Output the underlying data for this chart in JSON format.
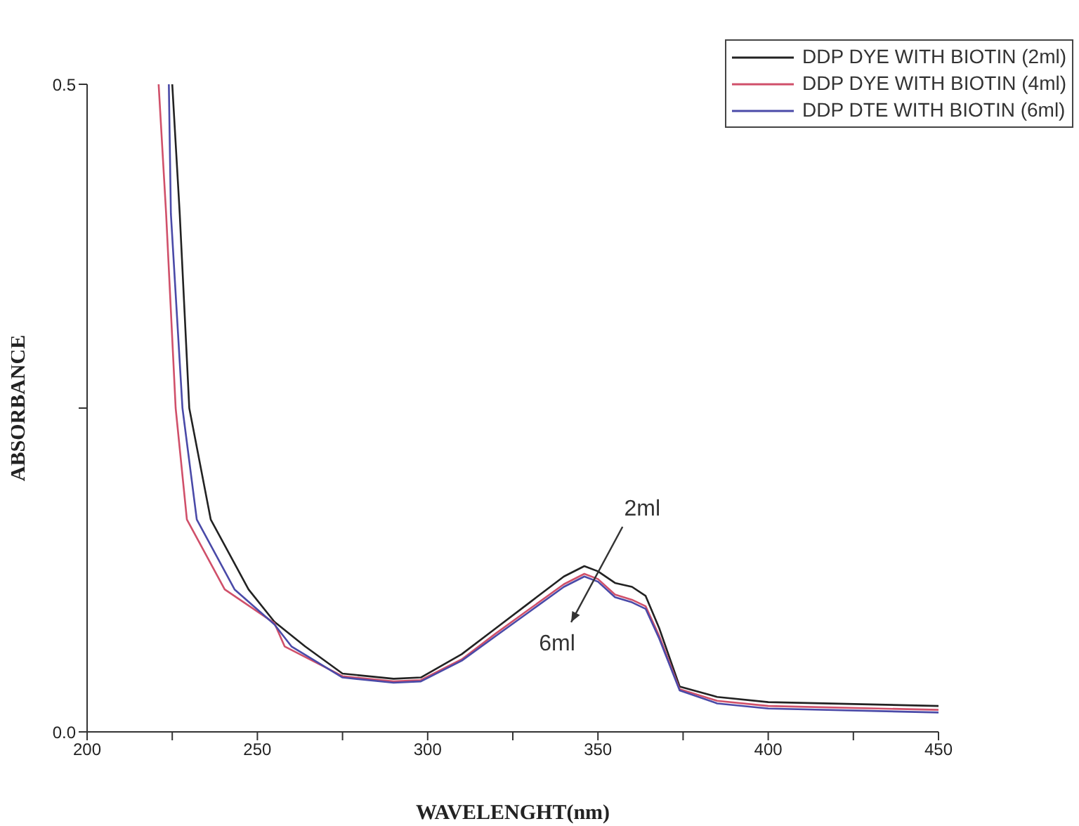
{
  "chart_data": {
    "type": "line",
    "xlabel": "WAVELENGHT(nm)",
    "ylabel": "ABSORBANCE",
    "xlim": [
      200,
      450
    ],
    "xticks": [
      200,
      {
        "value": 225,
        "label": null
      },
      250,
      {
        "value": 275,
        "label": null
      },
      300,
      {
        "value": 325,
        "label": null
      },
      350,
      {
        "value": 375,
        "label": null
      },
      400,
      {
        "value": 425,
        "label": null
      },
      450
    ],
    "ylim": [
      0,
      0.5
    ],
    "yticks": [
      {
        "value": 0,
        "label": "0.0"
      },
      {
        "value": 0.25,
        "label": null
      },
      0.5
    ],
    "grid": false,
    "legend": "top right",
    "marker": "none",
    "line_style": "solid",
    "annotations": [
      "2ml",
      "6ml"
    ],
    "series": [
      {
        "name": "DDP DYE WITH BIOTIN (2ml)",
        "color": "#222222",
        "x": [
          225,
          227.2,
          230,
          236.3,
          247.4,
          255,
          264,
          275,
          290,
          298,
          310,
          320,
          330,
          340,
          346,
          350,
          355,
          360,
          364,
          368,
          374,
          385,
          400,
          450
        ],
        "values": [
          0.5,
          0.4,
          0.25,
          0.164,
          0.11,
          0.085,
          0.066,
          0.045,
          0.041,
          0.042,
          0.06,
          0.08,
          0.1,
          0.12,
          0.128,
          0.124,
          0.115,
          0.112,
          0.105,
          0.08,
          0.035,
          0.027,
          0.023,
          0.02
        ]
      },
      {
        "name": "DDP DYE WITH BIOTIN (4ml)",
        "color": "#d0506a",
        "x": [
          221,
          223.2,
          226,
          229.3,
          240.4,
          255,
          258,
          275,
          290,
          298,
          310,
          320,
          330,
          340,
          346,
          350,
          355,
          360,
          364,
          368,
          374,
          385,
          400,
          450
        ],
        "values": [
          0.5,
          0.4,
          0.25,
          0.164,
          0.11,
          0.084,
          0.066,
          0.043,
          0.039,
          0.04,
          0.056,
          0.076,
          0.095,
          0.114,
          0.122,
          0.118,
          0.106,
          0.102,
          0.097,
          0.074,
          0.033,
          0.024,
          0.02,
          0.017
        ]
      },
      {
        "name": "DDP DTE WITH BIOTIN (6ml)",
        "color": "#4a4aa8",
        "x": [
          224,
          224.6,
          228,
          232.2,
          243.3,
          255,
          260,
          275,
          290,
          298,
          310,
          320,
          330,
          340,
          346,
          350,
          355,
          360,
          364,
          368,
          374,
          385,
          400,
          450
        ],
        "values": [
          0.5,
          0.4,
          0.25,
          0.164,
          0.11,
          0.083,
          0.066,
          0.042,
          0.038,
          0.039,
          0.055,
          0.074,
          0.093,
          0.112,
          0.12,
          0.116,
          0.104,
          0.1,
          0.095,
          0.072,
          0.032,
          0.022,
          0.018,
          0.015
        ]
      }
    ]
  }
}
